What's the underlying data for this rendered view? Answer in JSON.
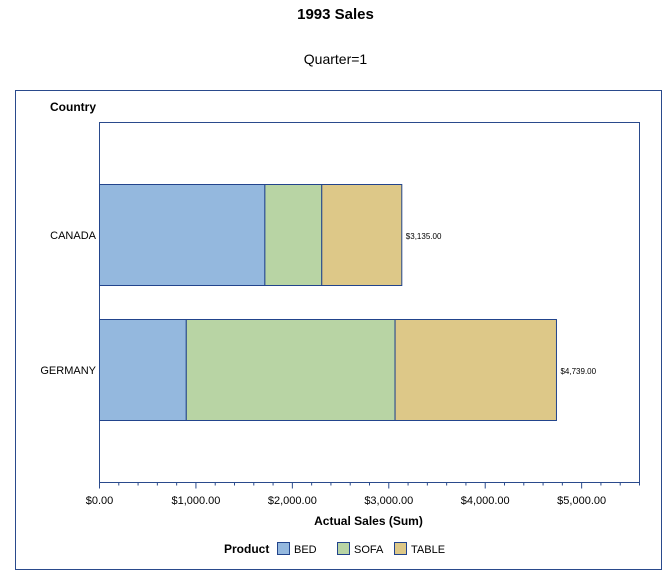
{
  "chart_data": {
    "type": "bar",
    "orientation": "horizontal",
    "stacked": true,
    "title": "1993 Sales",
    "subtitle": "Quarter=1",
    "ylabel": "Country",
    "xlabel": "Actual Sales (Sum)",
    "categories": [
      "CANADA",
      "GERMANY"
    ],
    "series": [
      {
        "name": "BED",
        "color": "#94b8de",
        "values": [
          1715,
          900
        ]
      },
      {
        "name": "SOFA",
        "color": "#b8d4a4",
        "values": [
          590,
          2165
        ]
      },
      {
        "name": "TABLE",
        "color": "#ddc888",
        "values": [
          830,
          1674
        ]
      }
    ],
    "totals": [
      3135,
      4739
    ],
    "total_labels": [
      "$3,135.00",
      "$4,739.00"
    ],
    "xlim": [
      0,
      5600
    ],
    "xticks": [
      0,
      1000,
      2000,
      3000,
      4000,
      5000
    ],
    "xtick_labels": [
      "$0.00",
      "$1,000.00",
      "$2,000.00",
      "$3,000.00",
      "$4,000.00",
      "$5,000.00"
    ],
    "grid": false,
    "legend": {
      "title": "Product",
      "placement": "bottom"
    },
    "frame_color": "#2a4a8c",
    "bar_border_color": "#22448c"
  }
}
